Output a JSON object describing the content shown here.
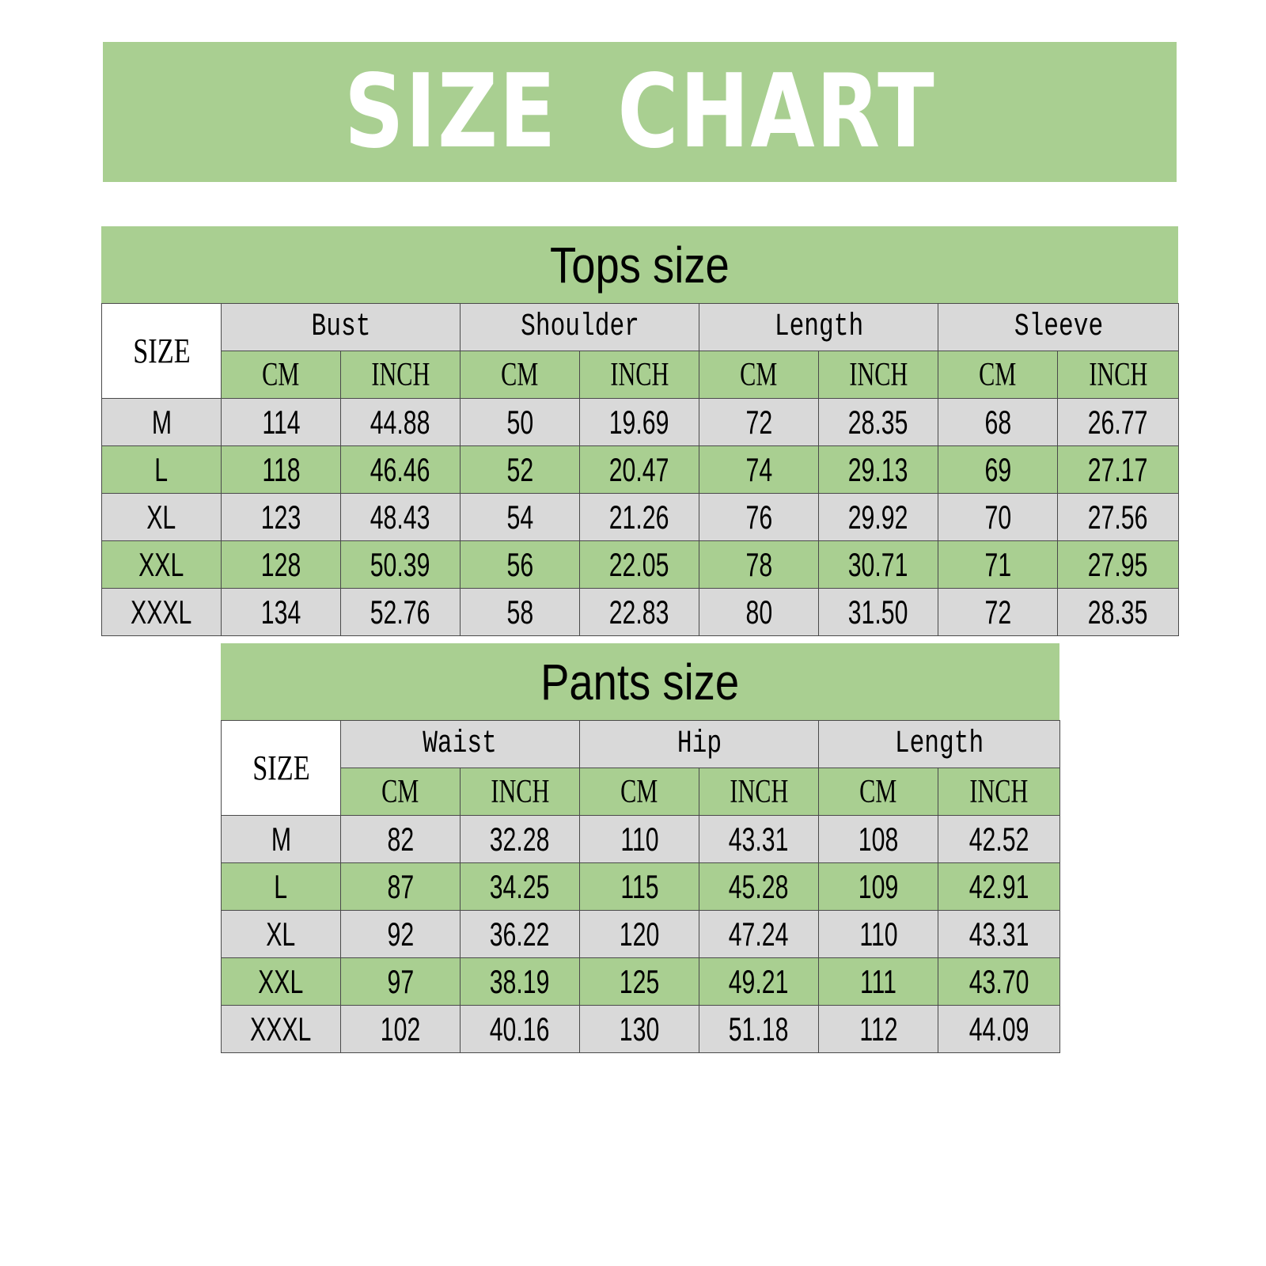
{
  "title": "SIZE  CHART",
  "tops": {
    "title": "Tops size",
    "size_header": "SIZE",
    "groups": [
      "Bust",
      "Shoulder",
      "Length",
      "Sleeve"
    ],
    "unit_cm": "CM",
    "unit_inch": "INCH",
    "rows": [
      {
        "size": "M",
        "values": [
          "114",
          "44.88",
          "50",
          "19.69",
          "72",
          "28.35",
          "68",
          "26.77"
        ]
      },
      {
        "size": "L",
        "values": [
          "118",
          "46.46",
          "52",
          "20.47",
          "74",
          "29.13",
          "69",
          "27.17"
        ]
      },
      {
        "size": "XL",
        "values": [
          "123",
          "48.43",
          "54",
          "21.26",
          "76",
          "29.92",
          "70",
          "27.56"
        ]
      },
      {
        "size": "XXL",
        "values": [
          "128",
          "50.39",
          "56",
          "22.05",
          "78",
          "30.71",
          "71",
          "27.95"
        ]
      },
      {
        "size": "XXXL",
        "values": [
          "134",
          "52.76",
          "58",
          "22.83",
          "80",
          "31.50",
          "72",
          "28.35"
        ]
      }
    ]
  },
  "pants": {
    "title": "Pants size",
    "size_header": "SIZE",
    "groups": [
      "Waist",
      "Hip",
      "Length"
    ],
    "unit_cm": "CM",
    "unit_inch": "INCH",
    "rows": [
      {
        "size": "M",
        "values": [
          "82",
          "32.28",
          "110",
          "43.31",
          "108",
          "42.52"
        ]
      },
      {
        "size": "L",
        "values": [
          "87",
          "34.25",
          "115",
          "45.28",
          "109",
          "42.91"
        ]
      },
      {
        "size": "XL",
        "values": [
          "92",
          "36.22",
          "120",
          "47.24",
          "110",
          "43.31"
        ]
      },
      {
        "size": "XXL",
        "values": [
          "97",
          "38.19",
          "125",
          "49.21",
          "111",
          "43.70"
        ]
      },
      {
        "size": "XXXL",
        "values": [
          "102",
          "40.16",
          "130",
          "51.18",
          "112",
          "44.09"
        ]
      }
    ]
  },
  "colors": {
    "green": "#a9cf91",
    "gray": "#d9d9d9",
    "white": "#ffffff",
    "title_text": "#ffffff"
  }
}
